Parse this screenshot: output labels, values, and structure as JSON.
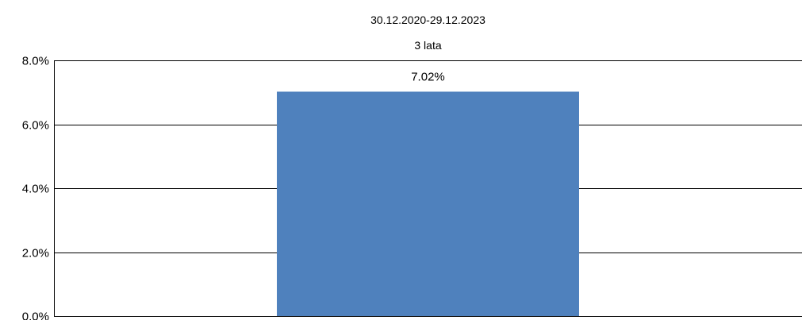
{
  "chart_data": {
    "type": "bar",
    "categories": [
      {
        "date_range": "30.12.2020-29.12.2023",
        "period": "3 lata"
      }
    ],
    "values": [
      7.02
    ],
    "data_labels": [
      "7.02%"
    ],
    "ylim": [
      0,
      8
    ],
    "y_ticks": [
      {
        "value": 0,
        "label": "0.0%"
      },
      {
        "value": 2,
        "label": "2.0%"
      },
      {
        "value": 4,
        "label": "4.0%"
      },
      {
        "value": 6,
        "label": "6.0%"
      },
      {
        "value": 8,
        "label": "8.0%"
      }
    ],
    "grid": true,
    "bar_color": "#4f81bd",
    "grid_color": "#000000"
  }
}
